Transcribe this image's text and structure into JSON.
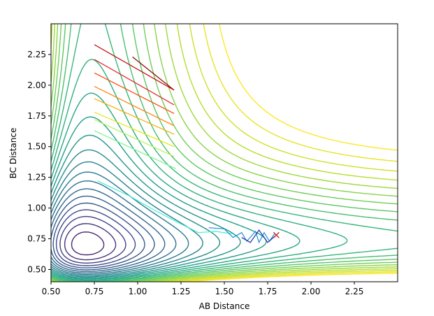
{
  "chart_data": {
    "type": "contour",
    "xlabel": "AB Distance",
    "ylabel": "BC Distance",
    "xlim": [
      0.5,
      2.5
    ],
    "ylim": [
      0.4,
      2.5
    ],
    "x_ticks": [
      "0.50",
      "0.75",
      "1.00",
      "1.25",
      "1.50",
      "1.75",
      "2.00",
      "2.25"
    ],
    "y_ticks": [
      "0.50",
      "0.75",
      "1.00",
      "1.25",
      "1.50",
      "1.75",
      "2.00",
      "2.25"
    ],
    "x_tick_values": [
      0.5,
      0.75,
      1.0,
      1.25,
      1.5,
      1.75,
      2.0,
      2.25
    ],
    "y_tick_values": [
      0.5,
      0.75,
      1.0,
      1.25,
      1.5,
      1.75,
      2.0,
      2.25
    ],
    "grid": false,
    "colormap": "viridis",
    "contour_levels": 28,
    "marker": {
      "x": 1.8,
      "y": 0.78,
      "symbol": "x",
      "color": "#d62728"
    },
    "trajectories": [
      {
        "color": "#8b0000",
        "points": [
          [
            0.97,
            2.23
          ],
          [
            1.21,
            1.96
          ]
        ]
      },
      {
        "color": "#c00000",
        "points": [
          [
            0.75,
            2.33
          ],
          [
            1.21,
            1.96
          ]
        ]
      },
      {
        "color": "#e31a1c",
        "points": [
          [
            0.75,
            2.21
          ],
          [
            1.21,
            1.84
          ]
        ]
      },
      {
        "color": "#ff4500",
        "points": [
          [
            0.75,
            2.1
          ],
          [
            1.21,
            1.77
          ]
        ]
      },
      {
        "color": "#ff7f0e",
        "points": [
          [
            0.75,
            1.99
          ],
          [
            1.21,
            1.67
          ]
        ]
      },
      {
        "color": "#ffaa00",
        "points": [
          [
            0.75,
            1.89
          ],
          [
            1.21,
            1.6
          ]
        ]
      },
      {
        "color": "#e6e600",
        "points": [
          [
            0.75,
            1.78
          ],
          [
            1.21,
            1.5
          ]
        ]
      },
      {
        "color": "#b5f25a",
        "points": [
          [
            0.75,
            1.72
          ],
          [
            1.21,
            1.42
          ]
        ]
      },
      {
        "color": "#7cf58c",
        "points": [
          [
            0.75,
            1.63
          ],
          [
            1.22,
            1.32
          ]
        ]
      },
      {
        "color": "#3ff0d0",
        "points": [
          [
            0.77,
            1.22
          ],
          [
            0.95,
            1.1
          ],
          [
            1.1,
            0.98
          ],
          [
            1.25,
            0.87
          ],
          [
            1.35,
            0.8
          ],
          [
            1.45,
            0.81
          ],
          [
            1.55,
            0.79
          ]
        ]
      },
      {
        "color": "#1f8fe0",
        "points": [
          [
            1.41,
            0.84
          ],
          [
            1.5,
            0.83
          ],
          [
            1.55,
            0.76
          ],
          [
            1.6,
            0.8
          ],
          [
            1.63,
            0.73
          ],
          [
            1.68,
            0.81
          ],
          [
            1.7,
            0.72
          ],
          [
            1.73,
            0.8
          ],
          [
            1.76,
            0.73
          ],
          [
            1.79,
            0.79
          ]
        ]
      },
      {
        "color": "#1a2f9e",
        "points": [
          [
            1.6,
            0.76
          ],
          [
            1.65,
            0.72
          ],
          [
            1.7,
            0.82
          ],
          [
            1.75,
            0.72
          ],
          [
            1.8,
            0.78
          ]
        ]
      }
    ]
  }
}
